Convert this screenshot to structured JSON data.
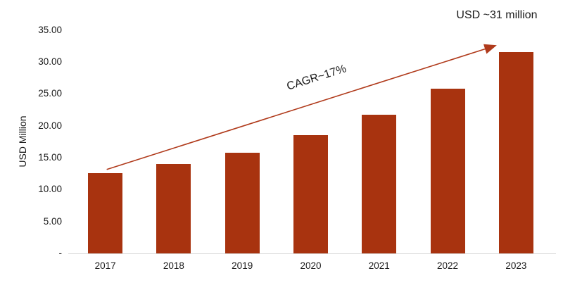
{
  "chart_data": {
    "type": "bar",
    "title": "",
    "categories": [
      "2017",
      "2018",
      "2019",
      "2020",
      "2021",
      "2022",
      "2023"
    ],
    "values": [
      12.6,
      14.0,
      15.8,
      18.5,
      21.7,
      25.8,
      31.5
    ],
    "xlabel": "",
    "ylabel": "USD Million",
    "ylim": [
      0,
      35
    ],
    "ytick_step": 5,
    "ytick_labels": [
      "-",
      "5.00",
      "10.00",
      "15.00",
      "20.00",
      "25.00",
      "30.00",
      "35.00"
    ],
    "grid": false,
    "legend": null,
    "annotations": {
      "cagr_label": "CAGR~17%",
      "end_value_label": "USD ~31 million"
    },
    "colors": {
      "bar": "#a8330f",
      "arrow": "#b03a1b",
      "axis_line": "#d9d9d9",
      "text": "#1a1a1a"
    }
  }
}
